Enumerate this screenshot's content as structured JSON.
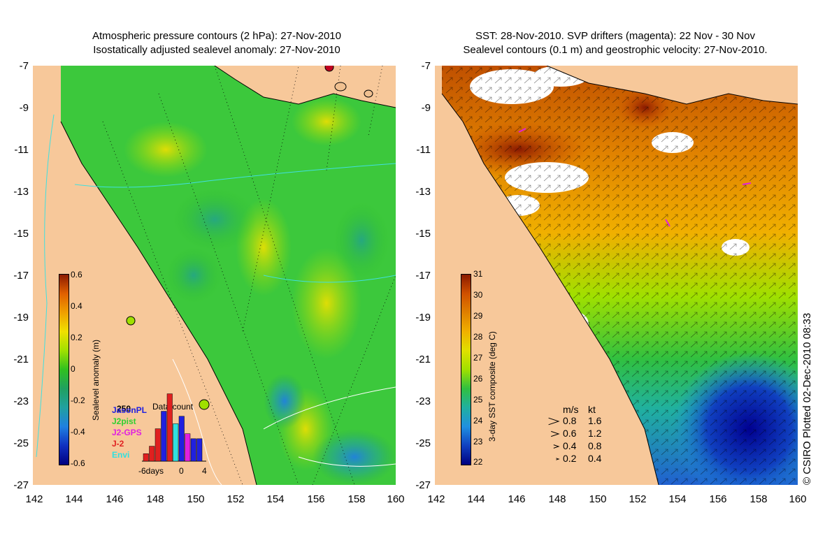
{
  "left_panel": {
    "title_line1": "Atmospheric pressure contours (2 hPa): 27-Nov-2010",
    "title_line2": "Isostatically adjusted sealevel anomaly: 27-Nov-2010",
    "colorbar": {
      "label": "Sealevel anomaly (m)",
      "ticks": [
        "0.6",
        "0.4",
        "0.2",
        "0",
        "-0.2",
        "-0.4",
        "-0.6"
      ],
      "colors": [
        "#8b1a00",
        "#e06000",
        "#f0a000",
        "#f0e000",
        "#a0e000",
        "#30c020",
        "#20a060",
        "#20a0a0",
        "#2080e0",
        "#1030c0",
        "#000080"
      ]
    },
    "data_count": {
      "title": "Data count",
      "count_label": "250",
      "x_ticks": [
        "-6days",
        "0",
        "4"
      ],
      "satellites": [
        {
          "name": "JasonPL",
          "color": "#2020e0"
        },
        {
          "name": "J2pist",
          "color": "#30d030"
        },
        {
          "name": "J2-GPS",
          "color": "#e020e0"
        },
        {
          "name": "J-2",
          "color": "#e02020"
        },
        {
          "name": "Envi",
          "color": "#30e0e0"
        }
      ],
      "bars": [
        {
          "day": -6,
          "value": 30,
          "color": "#e02020"
        },
        {
          "day": -5,
          "value": 60,
          "color": "#e02020"
        },
        {
          "day": -4,
          "value": 130,
          "color": "#e02020"
        },
        {
          "day": -3,
          "value": 200,
          "color": "#2020e0"
        },
        {
          "day": -2,
          "value": 270,
          "color": "#e02020"
        },
        {
          "day": -1,
          "value": 150,
          "color": "#30e0e0"
        },
        {
          "day": 0,
          "value": 180,
          "color": "#2020e0"
        },
        {
          "day": 1,
          "value": 110,
          "color": "#e020e0"
        },
        {
          "day": 2,
          "value": 90,
          "color": "#2020e0"
        },
        {
          "day": 3,
          "value": 90,
          "color": "#2020e0"
        }
      ]
    }
  },
  "right_panel": {
    "title_line1": "SST: 28-Nov-2010. SVP drifters (magenta): 22 Nov - 30 Nov",
    "title_line2": "Sealevel contours (0.1 m) and geostrophic velocity: 27-Nov-2010.",
    "colorbar": {
      "label": "3-day SST composite (deg C)",
      "ticks": [
        "31",
        "30",
        "29",
        "28",
        "27",
        "26",
        "25",
        "24",
        "23",
        "22"
      ],
      "colors": [
        "#8b1a00",
        "#d05000",
        "#e08000",
        "#f0b000",
        "#e0e000",
        "#a0e000",
        "#30c040",
        "#20b0a0",
        "#2090e0",
        "#1040c0",
        "#000080"
      ]
    },
    "speed_legend": {
      "header_ms": "m/s",
      "header_kt": "kt",
      "rows": [
        {
          "ms": "0.8",
          "kt": "1.6",
          "value": 0.8
        },
        {
          "ms": "0.6",
          "kt": "1.2",
          "value": 0.6
        },
        {
          "ms": "0.4",
          "kt": "0.8",
          "value": 0.4
        },
        {
          "ms": "0.2",
          "kt": "0.4",
          "value": 0.2
        }
      ]
    }
  },
  "axes": {
    "lat_ticks": [
      "-7",
      "-9",
      "-11",
      "-13",
      "-15",
      "-17",
      "-19",
      "-21",
      "-23",
      "-25",
      "-27"
    ],
    "lon_ticks": [
      "142",
      "144",
      "146",
      "148",
      "150",
      "152",
      "154",
      "156",
      "158",
      "160"
    ]
  },
  "colors": {
    "land": "#f7c89a",
    "sea_green": "#3cc83c",
    "cloud": "#ffffff",
    "coast": "#000000",
    "bathy": "#40e0e0"
  },
  "credit": "© CSIRO Plotted 02-Dec-2010 08:33"
}
